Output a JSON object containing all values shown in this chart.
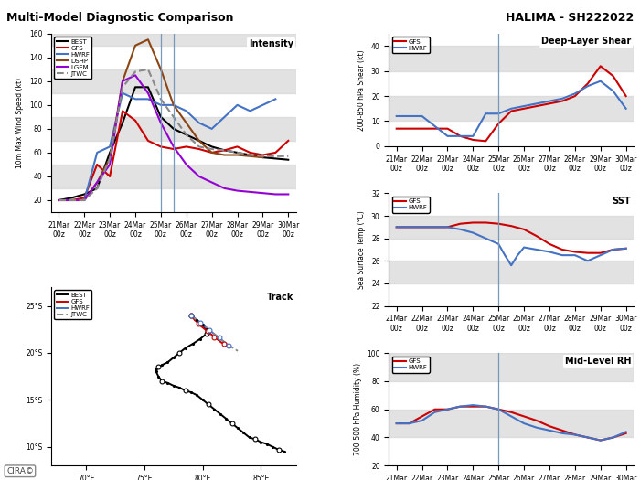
{
  "title_left": "Multi-Model Diagnostic Comparison",
  "title_right": "HALIMA - SH222022",
  "time_ticks": [
    0,
    1,
    2,
    3,
    4,
    5,
    6,
    7,
    8,
    9
  ],
  "time_tick_labels": [
    "21Mar\n00z",
    "22Mar\n00z",
    "23Mar\n00z",
    "24Mar\n00z",
    "25Mar\n00z",
    "26Mar\n00z",
    "27Mar\n00z",
    "28Mar\n00z",
    "29Mar\n00z",
    "30Mar\n00z"
  ],
  "intensity": {
    "ylabel": "10m Max Wind Speed (kt)",
    "ylim": [
      10,
      160
    ],
    "yticks": [
      20,
      40,
      60,
      80,
      100,
      120,
      140,
      160
    ],
    "label": "Intensity",
    "best_x": [
      0,
      0.5,
      1,
      1.5,
      2,
      2.5,
      3,
      3.5,
      4,
      4.5,
      5,
      5.5,
      6,
      6.5,
      7,
      7.5,
      8,
      8.5,
      9
    ],
    "best": [
      20,
      22,
      25,
      30,
      60,
      85,
      115,
      115,
      90,
      80,
      75,
      70,
      65,
      62,
      60,
      58,
      56,
      55,
      54
    ],
    "gfs_x": [
      0,
      0.5,
      1,
      1.5,
      2,
      2.5,
      3,
      3.5,
      4,
      4.5,
      5,
      5.5,
      6,
      6.5,
      7,
      7.5,
      8,
      8.5,
      9
    ],
    "gfs": [
      20,
      20,
      22,
      50,
      40,
      95,
      87,
      70,
      65,
      63,
      65,
      63,
      60,
      62,
      65,
      60,
      58,
      60,
      70
    ],
    "hwrf_x": [
      0,
      0.5,
      1,
      1.5,
      2,
      2.5,
      3,
      3.5,
      4,
      4.5,
      5,
      5.5,
      6,
      6.5,
      7,
      7.5,
      8,
      8.5
    ],
    "hwrf": [
      20,
      20,
      20,
      60,
      65,
      110,
      105,
      105,
      100,
      100,
      95,
      85,
      80,
      90,
      100,
      95,
      100,
      105
    ],
    "dshp_x": [
      0,
      0.5,
      1,
      1.5,
      2,
      2.5,
      3,
      3.5,
      4,
      4.5,
      5,
      5.5,
      6,
      6.5,
      7,
      7.5,
      8
    ],
    "dshp": [
      20,
      20,
      20,
      35,
      55,
      120,
      150,
      155,
      130,
      100,
      85,
      70,
      60,
      58,
      58,
      57,
      56
    ],
    "lgem_x": [
      0,
      0.5,
      1,
      1.5,
      2,
      2.5,
      3,
      3.5,
      4,
      4.5,
      5,
      5.5,
      6,
      6.5,
      7,
      7.5,
      8,
      8.5,
      9
    ],
    "lgem": [
      20,
      20,
      20,
      35,
      50,
      120,
      125,
      110,
      85,
      65,
      50,
      40,
      35,
      30,
      28,
      27,
      26,
      25,
      25
    ],
    "jtwc_x": [
      0,
      0.5,
      1,
      1.5,
      2,
      2.5,
      3,
      3.5,
      4,
      4.5,
      5,
      5.5,
      6,
      6.5,
      7,
      7.5,
      8,
      8.5,
      9
    ],
    "jtwc": [
      20,
      20,
      20,
      30,
      55,
      115,
      128,
      130,
      105,
      90,
      75,
      65,
      63,
      62,
      60,
      58,
      57,
      57,
      57
    ]
  },
  "shear": {
    "ylabel": "200-850 hPa Shear (kt)",
    "ylim": [
      0,
      45
    ],
    "yticks": [
      0,
      10,
      20,
      30,
      40
    ],
    "label": "Deep-Layer Shear",
    "gfs_x": [
      0,
      0.5,
      1,
      1.5,
      2,
      2.5,
      3,
      3.5,
      4,
      4.5,
      5,
      5.5,
      6,
      6.5,
      7,
      7.5,
      8,
      8.5,
      9
    ],
    "gfs": [
      7,
      7,
      7,
      7,
      7,
      4,
      2.5,
      2,
      9,
      14,
      15,
      16,
      17,
      18,
      20,
      25,
      32,
      28,
      20
    ],
    "hwrf_x": [
      0,
      0.5,
      1,
      1.5,
      2,
      2.5,
      3,
      3.5,
      4,
      4.5,
      5,
      5.5,
      6,
      6.5,
      7,
      7.5,
      8,
      8.5,
      9
    ],
    "hwrf": [
      12,
      12,
      12,
      8,
      4,
      4,
      4,
      13,
      13,
      15,
      16,
      17,
      18,
      19,
      21,
      24,
      26,
      22,
      15
    ]
  },
  "sst": {
    "ylabel": "Sea Surface Temp (°C)",
    "ylim": [
      22,
      32
    ],
    "yticks": [
      22,
      24,
      26,
      28,
      30,
      32
    ],
    "label": "SST",
    "gfs_x": [
      0,
      0.5,
      1,
      1.5,
      2,
      2.5,
      3,
      3.5,
      4,
      4.5,
      5,
      5.5,
      6,
      6.5,
      7,
      7.5,
      8,
      8.5,
      9
    ],
    "gfs": [
      29,
      29,
      29,
      29,
      29,
      29.3,
      29.4,
      29.4,
      29.3,
      29.1,
      28.8,
      28.2,
      27.5,
      27.0,
      26.8,
      26.7,
      26.7,
      27.0,
      27.1
    ],
    "hwrf_x": [
      0,
      0.5,
      1,
      1.5,
      2,
      2.5,
      3,
      3.5,
      4,
      4.25,
      4.5,
      4.75,
      5,
      5.5,
      6,
      6.5,
      7,
      7.5,
      8,
      8.5,
      9
    ],
    "hwrf": [
      29,
      29,
      29,
      29,
      29,
      28.8,
      28.5,
      28,
      27.5,
      26.5,
      25.6,
      26.5,
      27.2,
      27.0,
      26.8,
      26.5,
      26.5,
      26.0,
      26.5,
      27.0,
      27.1
    ]
  },
  "rh": {
    "ylabel": "700-500 hPa Humidity (%)",
    "ylim": [
      20,
      100
    ],
    "yticks": [
      20,
      40,
      60,
      80,
      100
    ],
    "label": "Mid-Level RH",
    "gfs_x": [
      0,
      0.5,
      1,
      1.5,
      2,
      2.5,
      3,
      3.5,
      4,
      4.5,
      5,
      5.5,
      6,
      6.5,
      7,
      7.5,
      8,
      8.5,
      9
    ],
    "gfs": [
      50,
      50,
      55,
      60,
      60,
      62,
      62,
      62,
      60,
      58,
      55,
      52,
      48,
      45,
      42,
      40,
      38,
      40,
      43
    ],
    "hwrf_x": [
      0,
      0.5,
      1,
      1.5,
      2,
      2.5,
      3,
      3.5,
      4,
      4.5,
      5,
      5.5,
      6,
      6.5,
      7,
      7.5,
      8,
      8.5,
      9
    ],
    "hwrf": [
      50,
      50,
      52,
      58,
      60,
      62,
      63,
      62,
      60,
      55,
      50,
      47,
      45,
      43,
      42,
      40,
      38,
      40,
      44
    ]
  },
  "track": {
    "label": "Track",
    "xlim": [
      67,
      88
    ],
    "ylim": [
      -27,
      -8
    ],
    "xticks": [
      70,
      75,
      80,
      85
    ],
    "yticks": [
      -10,
      -15,
      -20,
      -25
    ],
    "best_lon": [
      79,
      79.5,
      80,
      80.3,
      80.3,
      79.8,
      79.2,
      78.5,
      78,
      77.5,
      77,
      76.5,
      76.2,
      76.0,
      76.0,
      76.2,
      76.5,
      77,
      77.5,
      78,
      78.5,
      79,
      79.5,
      80,
      80.5,
      81,
      81.5,
      82,
      82.5,
      83,
      83.5,
      84,
      84.5,
      85,
      85.5,
      86,
      86.5,
      87
    ],
    "best_lat": [
      -24,
      -23.5,
      -23,
      -22.5,
      -22,
      -21.5,
      -21,
      -20.5,
      -20,
      -19.5,
      -19,
      -18.7,
      -18.5,
      -18.3,
      -18,
      -17.5,
      -17,
      -16.8,
      -16.5,
      -16.3,
      -16,
      -15.8,
      -15.5,
      -15,
      -14.5,
      -14,
      -13.5,
      -13,
      -12.5,
      -12,
      -11.5,
      -11,
      -10.8,
      -10.5,
      -10.3,
      -10,
      -9.7,
      -9.5
    ],
    "gfs_lon": [
      79,
      79.2,
      79.3,
      79.5,
      79.6,
      79.8,
      80,
      80.2,
      80.4,
      80.5,
      80.7,
      80.9,
      81.0,
      81.2,
      81.4,
      81.6,
      81.8,
      82.0,
      82.2
    ],
    "gfs_lat": [
      -24,
      -23.7,
      -23.5,
      -23.3,
      -23.1,
      -22.9,
      -22.7,
      -22.5,
      -22.3,
      -22.2,
      -22.0,
      -21.8,
      -21.6,
      -21.5,
      -21.3,
      -21.1,
      -21.0,
      -20.8,
      -20.6
    ],
    "hwrf_lon": [
      79,
      79.2,
      79.4,
      79.6,
      79.8,
      80.0,
      80.2,
      80.4,
      80.6,
      80.8,
      81.0,
      81.2,
      81.4,
      81.6,
      81.8,
      82.0,
      82.2,
      82.4
    ],
    "hwrf_lat": [
      -24,
      -23.8,
      -23.6,
      -23.4,
      -23.2,
      -23.0,
      -22.8,
      -22.6,
      -22.4,
      -22.2,
      -22.0,
      -21.8,
      -21.6,
      -21.4,
      -21.2,
      -21.0,
      -20.8,
      -20.6
    ],
    "jtwc_lon": [
      79,
      79.3,
      79.6,
      79.8,
      80.0,
      80.2,
      80.4,
      80.6,
      80.8,
      81.0,
      81.2,
      81.4,
      81.6,
      81.8,
      82.0,
      82.2,
      82.5,
      82.8,
      83.0
    ],
    "jtwc_lat": [
      -24,
      -23.7,
      -23.4,
      -23.2,
      -23.0,
      -22.8,
      -22.6,
      -22.4,
      -22.2,
      -22.0,
      -21.8,
      -21.6,
      -21.4,
      -21.2,
      -21.0,
      -20.8,
      -20.6,
      -20.4,
      -20.2
    ]
  },
  "colors": {
    "best": "#000000",
    "gfs": "#cc0000",
    "hwrf": "#4472c4",
    "dshp": "#8B4513",
    "lgem": "#9400D3",
    "jtwc": "#888888",
    "vline": "#7799bb"
  }
}
